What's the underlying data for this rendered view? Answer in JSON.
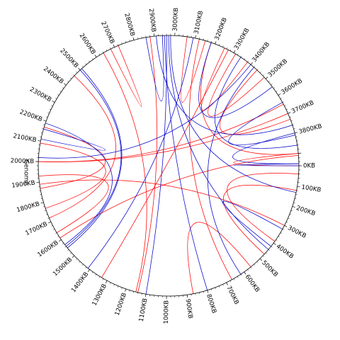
{
  "diagram": {
    "type": "circos-genome-links",
    "track_label": "Genome",
    "ring_color": "#000000",
    "link_colors": {
      "red": "#ff0000",
      "blue": "#0000cc"
    },
    "ticks": [
      "0KB",
      "100KB",
      "200KB",
      "300KB",
      "400KB",
      "500KB",
      "600KB",
      "700KB",
      "800KB",
      "900KB",
      "1000KB",
      "1100KB",
      "1200KB",
      "1300KB",
      "1400KB",
      "1500KB",
      "1600KB",
      "1700KB",
      "1800KB",
      "1900KB",
      "2000KB",
      "2100KB",
      "2200KB",
      "2300KB",
      "2400KB",
      "2500KB",
      "2600KB",
      "2700KB",
      "2800KB",
      "2900KB",
      "3000KB",
      "3100KB",
      "3200KB",
      "3300KB",
      "3400KB",
      "3500KB",
      "3600KB",
      "3700KB",
      "3800KB"
    ],
    "links": [
      {
        "color": "red",
        "from": "1330KB",
        "to": "3270KB"
      },
      {
        "color": "red",
        "from": "2680KB",
        "to": "2720KB"
      },
      {
        "color": "red",
        "from": "2880KB",
        "to": "1140KB"
      },
      {
        "color": "red",
        "from": "3060KB",
        "to": "3150KB"
      },
      {
        "color": "red",
        "from": "3250KB",
        "to": "3380KB"
      },
      {
        "color": "red",
        "from": "3120KB",
        "to": "670KB"
      },
      {
        "color": "red",
        "from": "2460KB",
        "to": "1720KB"
      },
      {
        "color": "red",
        "from": "2170KB",
        "to": "1870KB"
      },
      {
        "color": "red",
        "from": "2090KB",
        "to": "1770KB"
      },
      {
        "color": "red",
        "from": "2000KB",
        "to": "3700KB"
      },
      {
        "color": "red",
        "from": "2000KB",
        "to": "3650KB"
      },
      {
        "color": "red",
        "from": "1890KB",
        "to": "300KB"
      },
      {
        "color": "red",
        "from": "1610KB",
        "to": "3910KB"
      },
      {
        "color": "red",
        "from": "2640KB",
        "to": "1150KB"
      },
      {
        "color": "red",
        "from": "1930KB",
        "to": "1640KB"
      },
      {
        "color": "red",
        "from": "3440KB",
        "to": "3730KB"
      },
      {
        "color": "red",
        "from": "3310KB",
        "to": "3490KB"
      },
      {
        "color": "red",
        "from": "3900KB",
        "to": "3180KB"
      },
      {
        "color": "red",
        "from": "40KB",
        "to": "390KB"
      },
      {
        "color": "red",
        "from": "120KB",
        "to": "470KB"
      },
      {
        "color": "red",
        "from": "3960KB",
        "to": "3900KB"
      },
      {
        "color": "red",
        "from": "870KB",
        "to": "560KB"
      },
      {
        "color": "blue",
        "from": "2940KB",
        "to": "2860KB"
      },
      {
        "color": "blue",
        "from": "2950KB",
        "to": "800KB"
      },
      {
        "color": "blue",
        "from": "2960KB",
        "to": "1100KB"
      },
      {
        "color": "blue",
        "from": "2970KB",
        "to": "440KB"
      },
      {
        "color": "blue",
        "from": "2910KB",
        "to": "3760KB"
      },
      {
        "color": "blue",
        "from": "2980KB",
        "to": "130KB"
      },
      {
        "color": "blue",
        "from": "2510KB",
        "to": "1550KB"
      },
      {
        "color": "blue",
        "from": "2500KB",
        "to": "1560KB"
      },
      {
        "color": "blue",
        "from": "2110KB",
        "to": "2160KB"
      },
      {
        "color": "blue",
        "from": "2190KB",
        "to": "1570KB"
      },
      {
        "color": "blue",
        "from": "2020KB",
        "to": "3400KB"
      },
      {
        "color": "blue",
        "from": "1410KB",
        "to": "3090KB"
      },
      {
        "color": "blue",
        "from": "3180KB",
        "to": "3550KB"
      },
      {
        "color": "blue",
        "from": "3640KB",
        "to": "3810KB"
      },
      {
        "color": "blue",
        "from": "3800KB",
        "to": "3950KB"
      },
      {
        "color": "blue",
        "from": "3340KB",
        "to": "3860KB"
      },
      {
        "color": "blue",
        "from": "3420KB",
        "to": "620KB"
      },
      {
        "color": "blue",
        "from": "320KB",
        "to": "420KB"
      },
      {
        "color": "blue",
        "from": "3960KB",
        "to": "3950KB"
      }
    ]
  }
}
